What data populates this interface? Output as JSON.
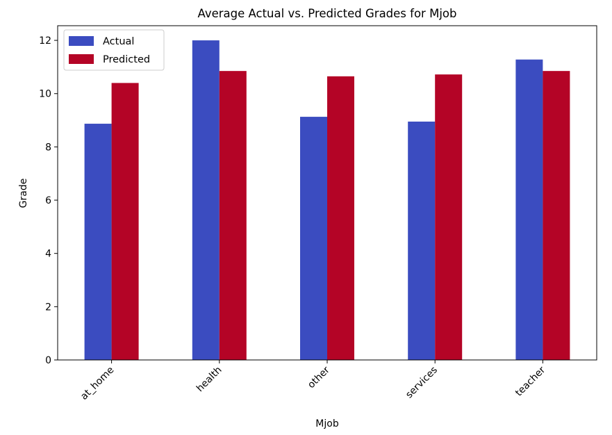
{
  "chart_data": {
    "type": "bar",
    "title": "Average Actual vs. Predicted Grades for Mjob",
    "xlabel": "Mjob",
    "ylabel": "Grade",
    "categories": [
      "at_home",
      "health",
      "other",
      "services",
      "teacher"
    ],
    "series": [
      {
        "name": "Actual",
        "color": "#3b4cc0",
        "values": [
          8.87,
          12.0,
          9.13,
          8.95,
          11.28
        ]
      },
      {
        "name": "Predicted",
        "color": "#b40426",
        "values": [
          10.4,
          10.85,
          10.65,
          10.72,
          10.85
        ]
      }
    ],
    "ylim": [
      0,
      12.55
    ],
    "yticks": [
      0,
      2,
      4,
      6,
      8,
      10,
      12
    ],
    "grid": false,
    "legend_position": "top-left"
  }
}
